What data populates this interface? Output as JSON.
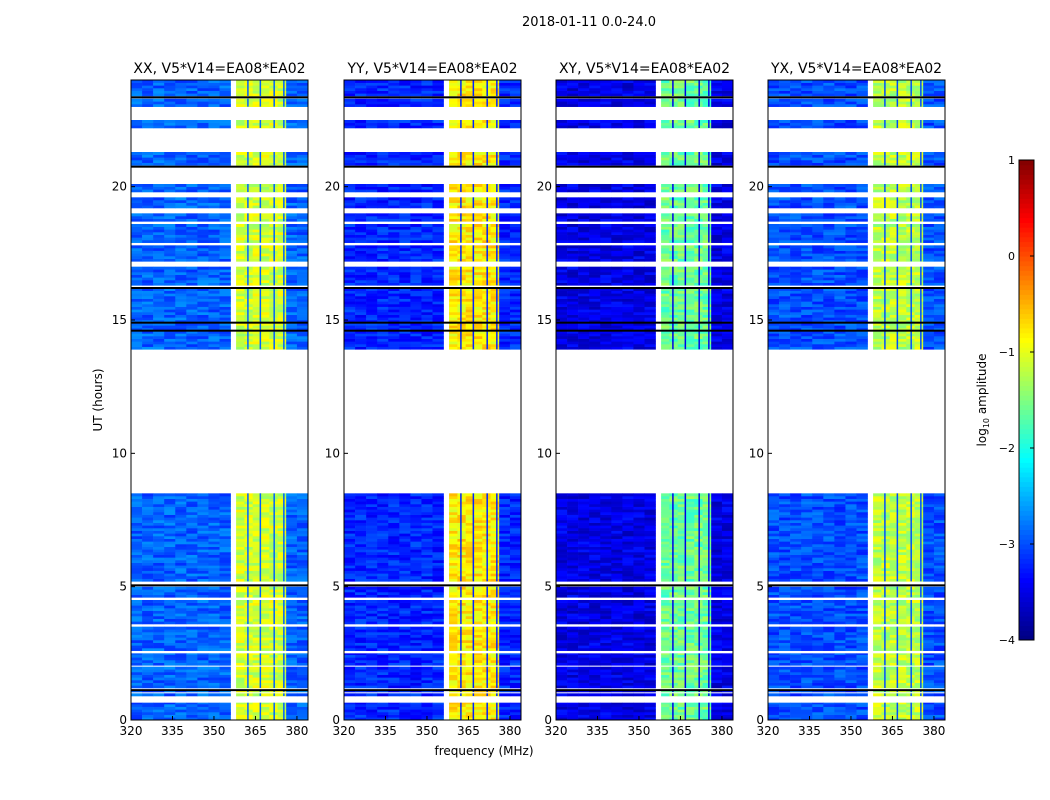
{
  "chart_data": {
    "type": "heatmap",
    "suptitle": "2018-01-11 0.0-24.0",
    "xlabel": "frequency (MHz)",
    "ylabel": "UT (hours)",
    "xlim": [
      320,
      384
    ],
    "ylim": [
      0,
      24
    ],
    "xticks": [
      320,
      335,
      350,
      365,
      380
    ],
    "yticks": [
      0,
      5,
      10,
      15,
      20
    ],
    "observed_segments_hours": [
      [
        0,
        0.65
      ],
      [
        0.9,
        1.0
      ],
      [
        1.05,
        1.1
      ],
      [
        1.2,
        2.0
      ],
      [
        2.05,
        2.5
      ],
      [
        2.6,
        3.5
      ],
      [
        3.6,
        4.5
      ],
      [
        4.6,
        5.0
      ],
      [
        5.2,
        8.5
      ],
      [
        13.9,
        16.2
      ],
      [
        16.3,
        17.0
      ],
      [
        17.2,
        17.8
      ],
      [
        17.9,
        18.6
      ],
      [
        18.7,
        19.0
      ],
      [
        19.2,
        19.6
      ],
      [
        19.8,
        20.1
      ],
      [
        20.8,
        21.3
      ],
      [
        22.2,
        22.5
      ],
      [
        23.0,
        23.3
      ],
      [
        23.4,
        24.0
      ]
    ],
    "flagged_rows_hours": [
      1.12,
      5.05,
      14.6,
      14.9,
      16.2,
      20.75,
      23.35
    ],
    "band_mhz": [
      358,
      376
    ],
    "band_gaps_mhz": [
      362,
      366.5,
      371.5,
      375
    ],
    "panels": [
      {
        "title": "XX, V5*V14=EA08*EA02",
        "background_log10": -2.9,
        "band_log10": -1.1
      },
      {
        "title": "YY, V5*V14=EA08*EA02",
        "background_log10": -3.2,
        "band_log10": -0.8
      },
      {
        "title": "XY, V5*V14=EA08*EA02",
        "background_log10": -3.5,
        "band_log10": -1.6
      },
      {
        "title": "YX, V5*V14=EA08*EA02",
        "background_log10": -3.0,
        "band_log10": -1.2
      }
    ],
    "colorbar": {
      "label_main": "log",
      "label_sub": "10",
      "label_rest": " amplitude",
      "range": [
        -4,
        1
      ],
      "ticks": [
        -4,
        -3,
        -2,
        -1,
        0,
        1
      ],
      "colormap": "jet"
    }
  }
}
